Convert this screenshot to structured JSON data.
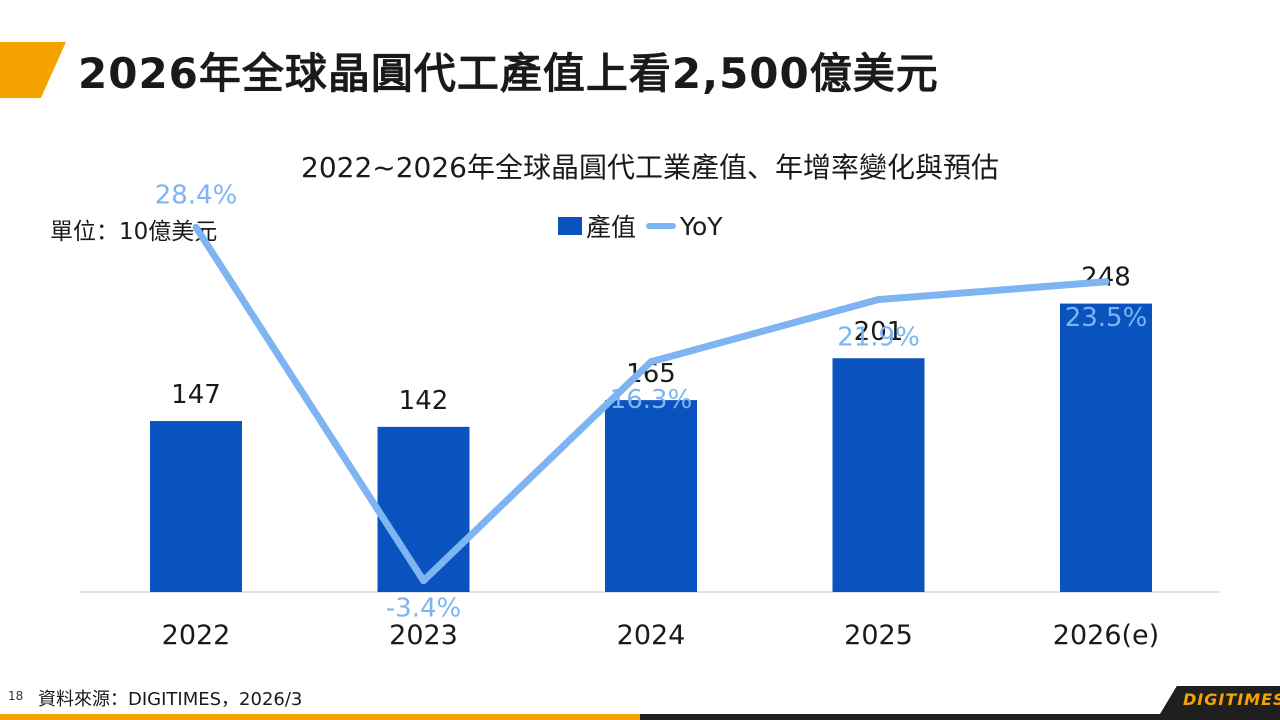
{
  "slide": {
    "title": "2026年全球晶圓代工產值上看2,500億美元",
    "page_number": "18",
    "source": "資料來源：DIGITIMES，2026/3",
    "brand": "DIGITIMES"
  },
  "colors": {
    "accent": "#f4a300",
    "bar": "#0a53be",
    "line": "#7eb4f2",
    "dark": "#1f1f1f"
  },
  "chart_data": {
    "type": "bar+line",
    "title": "2022~2026年全球晶圓代工業產值、年增率變化與預估",
    "unit_label": "單位：10億美元",
    "categories": [
      "2022",
      "2023",
      "2024",
      "2025",
      "2026(e)"
    ],
    "series": [
      {
        "name": "產值",
        "type": "bar",
        "values": [
          147,
          142,
          165,
          201,
          248
        ],
        "labels": [
          "147",
          "142",
          "165",
          "201",
          "248"
        ]
      },
      {
        "name": "YoY",
        "type": "line",
        "values": [
          28.4,
          -3.4,
          16.3,
          21.9,
          23.5
        ],
        "labels": [
          "28.4%",
          "-3.4%",
          "16.3%",
          "21.9%",
          "23.5%"
        ]
      }
    ],
    "bar_axis_range": [
      0,
      250
    ],
    "line_axis_range": [
      -10,
      35
    ],
    "legend_position": "top-center",
    "grid": false
  }
}
